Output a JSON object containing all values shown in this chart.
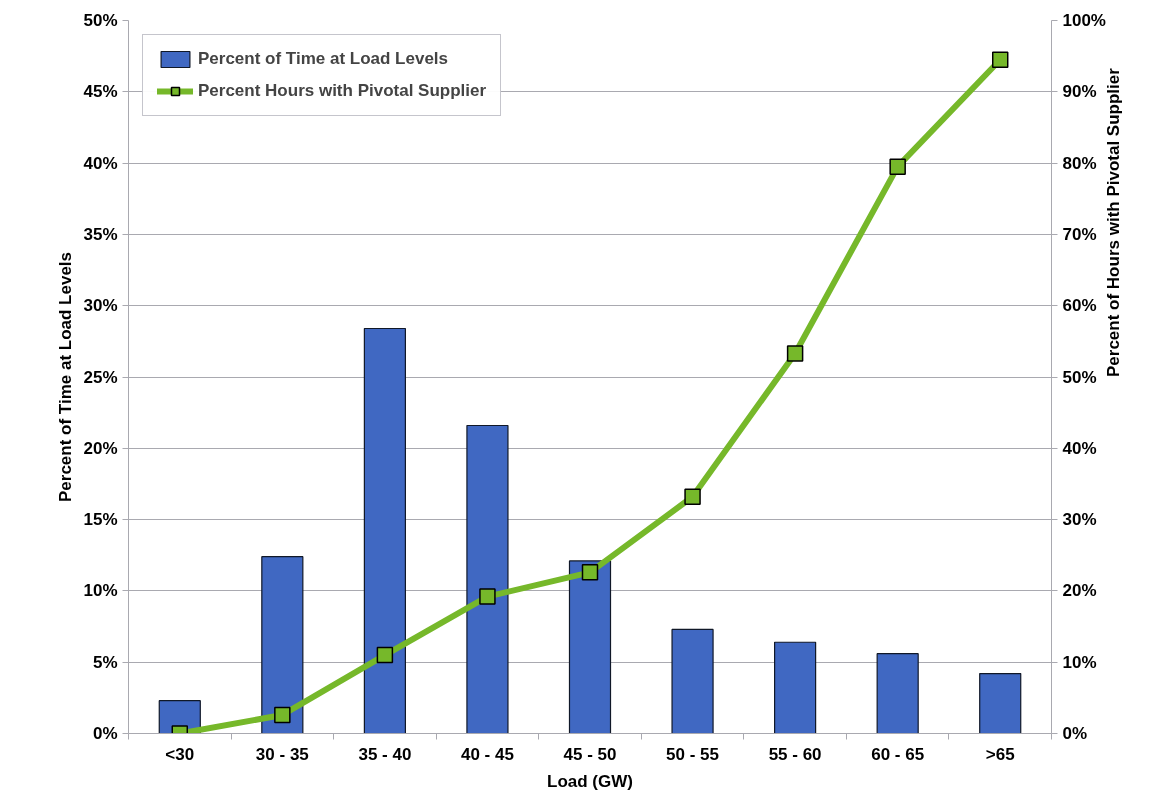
{
  "chart_data": {
    "type": "bar",
    "xlabel": "Load (GW)",
    "ylabel": "Percent of Time at Load Levels",
    "y2label": "Percent of Hours with Pivotal Supplier",
    "categories": [
      "<30",
      "30 - 35",
      "35 - 40",
      "40 - 45",
      "45 - 50",
      "50 - 55",
      "55 - 60",
      "60 - 65",
      ">65"
    ],
    "series": [
      {
        "name": "Percent of Time at Load Levels",
        "color": "#4068c2",
        "values": [
          2.3,
          12.4,
          28.4,
          21.6,
          12.1,
          7.3,
          6.4,
          5.6,
          4.2
        ]
      },
      {
        "name": "Percent Hours with Pivotal Supplier",
        "type": "line",
        "axis": "y2",
        "color": "#76b82a",
        "marker": "square",
        "line_style": "solid",
        "values": [
          0,
          2.6,
          11.0,
          19.2,
          22.6,
          33.2,
          53.3,
          79.5,
          94.5
        ]
      }
    ],
    "ylim": [
      0,
      50
    ],
    "yticks": [
      {
        "value": 0,
        "label": "0%"
      },
      {
        "value": 5,
        "label": "5%"
      },
      {
        "value": 10,
        "label": "10%"
      },
      {
        "value": 15,
        "label": "15%"
      },
      {
        "value": 20,
        "label": "20%"
      },
      {
        "value": 25,
        "label": "25%"
      },
      {
        "value": 30,
        "label": "30%"
      },
      {
        "value": 35,
        "label": "35%"
      },
      {
        "value": 40,
        "label": "40%"
      },
      {
        "value": 45,
        "label": "45%"
      },
      {
        "value": 50,
        "label": "50%"
      }
    ],
    "y2lim": [
      0,
      100
    ],
    "y2ticks": [
      {
        "value": 0,
        "label": "0%"
      },
      {
        "value": 10,
        "label": "10%"
      },
      {
        "value": 20,
        "label": "20%"
      },
      {
        "value": 30,
        "label": "30%"
      },
      {
        "value": 40,
        "label": "40%"
      },
      {
        "value": 50,
        "label": "50%"
      },
      {
        "value": 60,
        "label": "60%"
      },
      {
        "value": 70,
        "label": "70%"
      },
      {
        "value": 80,
        "label": "80%"
      },
      {
        "value": 90,
        "label": "90%"
      },
      {
        "value": 100,
        "label": "100%"
      }
    ],
    "grid": "y",
    "legend": "top left"
  }
}
